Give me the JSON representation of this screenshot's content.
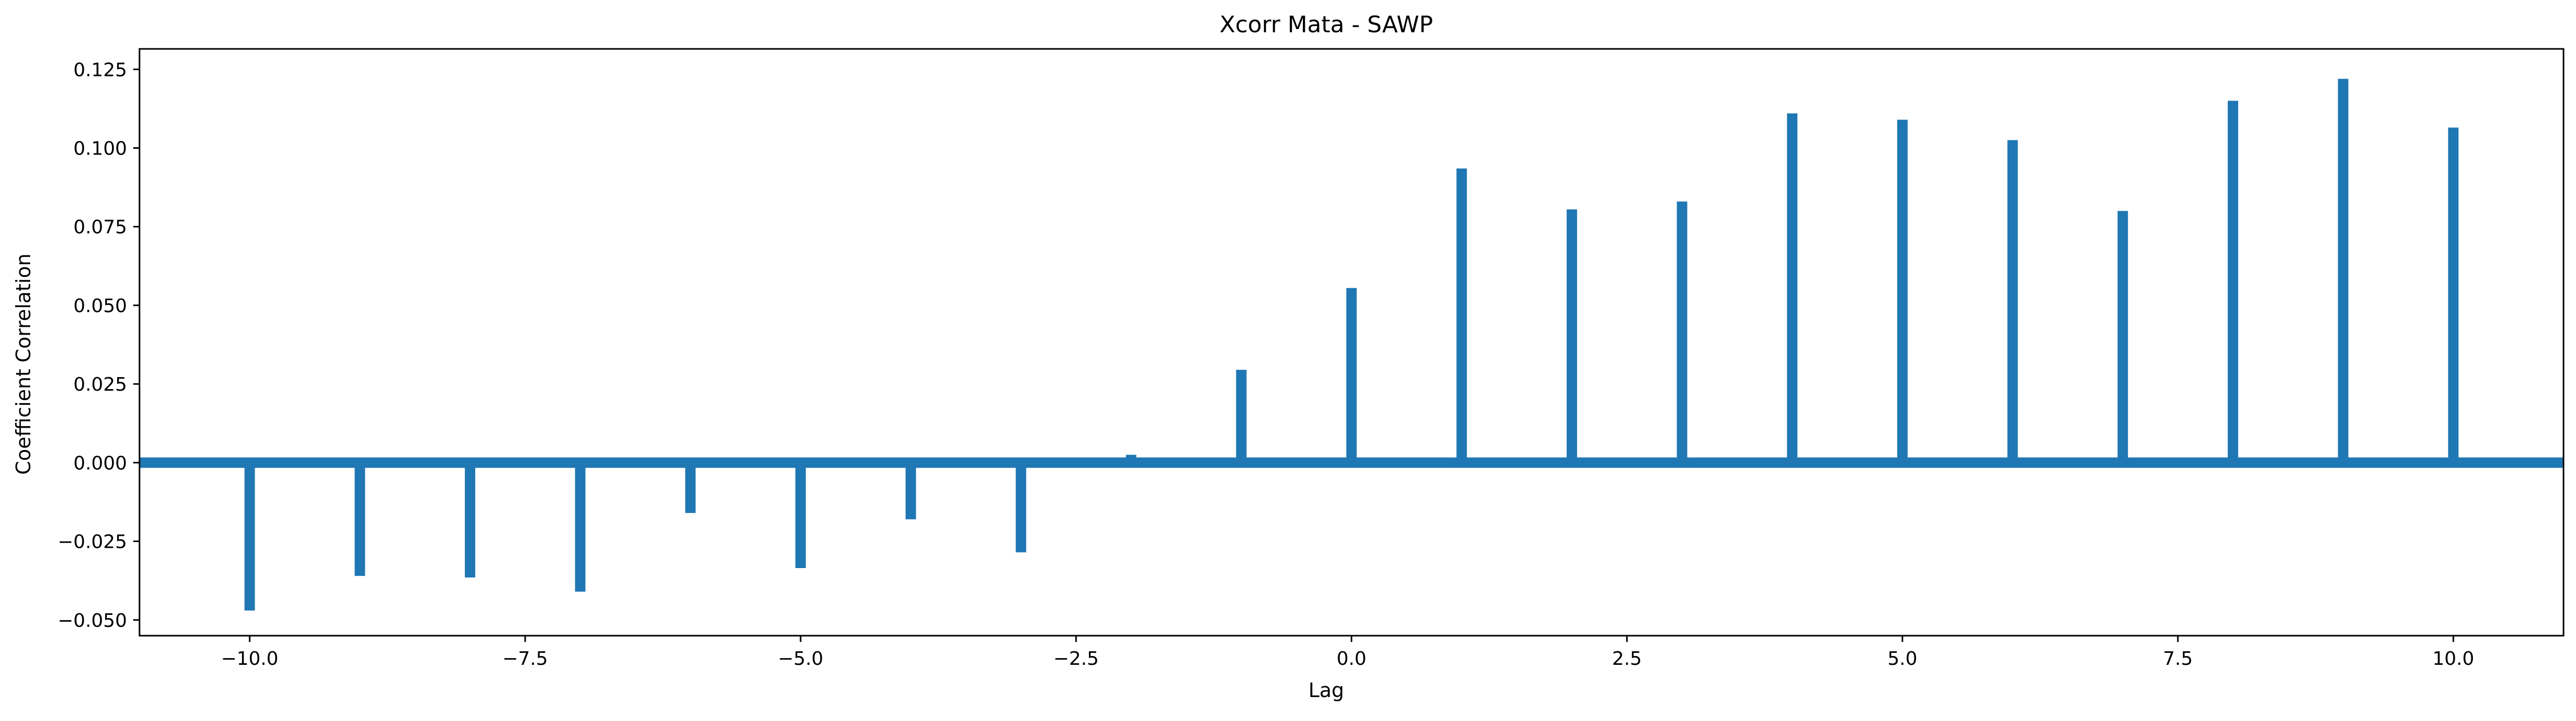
{
  "chart_data": {
    "type": "stem",
    "title": "Xcorr Mata - SAWP",
    "xlabel": "Lag",
    "ylabel": "Coefficient Correlation",
    "xlim": [
      -11,
      11
    ],
    "ylim": [
      -0.055,
      0.1315
    ],
    "grid": false,
    "baseline": 0,
    "color": "#1f77b4",
    "x_ticks": [
      -10.0,
      -7.5,
      -5.0,
      -2.5,
      0.0,
      2.5,
      5.0,
      7.5,
      10.0
    ],
    "x_tick_labels": [
      "−10.0",
      "−7.5",
      "−5.0",
      "−2.5",
      "0.0",
      "2.5",
      "5.0",
      "7.5",
      "10.0"
    ],
    "y_ticks": [
      -0.05,
      -0.025,
      0.0,
      0.025,
      0.05,
      0.075,
      0.1,
      0.125
    ],
    "y_tick_labels": [
      "−0.050",
      "−0.025",
      "0.000",
      "0.025",
      "0.050",
      "0.075",
      "0.100",
      "0.125"
    ],
    "x": [
      -10,
      -9,
      -8,
      -7,
      -6,
      -5,
      -4,
      -3,
      -2,
      -1,
      0,
      1,
      2,
      3,
      4,
      5,
      6,
      7,
      8,
      9,
      10
    ],
    "values": [
      -0.047,
      -0.036,
      -0.0365,
      -0.041,
      -0.016,
      -0.0335,
      -0.018,
      -0.0285,
      0.0025,
      0.0295,
      0.0555,
      0.0935,
      0.0805,
      0.083,
      0.111,
      0.109,
      0.1025,
      0.08,
      0.115,
      0.122,
      0.1065
    ]
  }
}
